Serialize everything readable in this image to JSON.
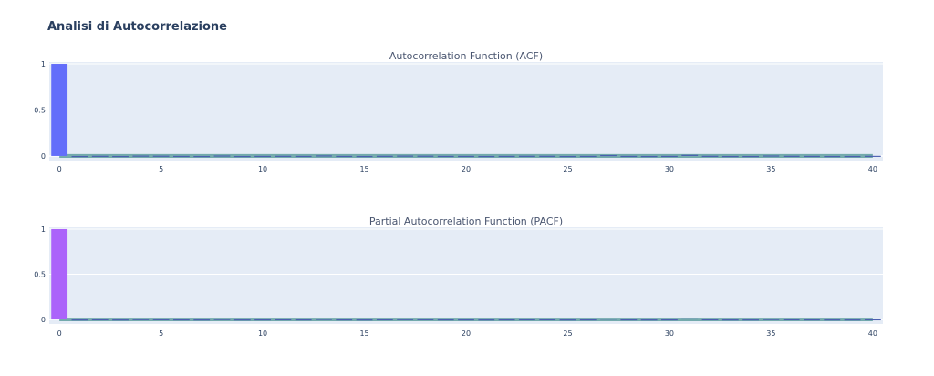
{
  "title": "Analisi di Autocorrelazione",
  "colors": {
    "plot_bg": "#e5ecf6",
    "grid": "#ffffff",
    "tick_text": "#2a3f5f",
    "acf_bar": "#636efa",
    "pacf_bar": "#ab63fa",
    "small_bar": "#4a5fb0",
    "confidence_band": "#5f9f9f"
  },
  "chart_data": [
    {
      "type": "bar",
      "title": "Autocorrelation Function (ACF)",
      "xlim": [
        -0.5,
        40.5
      ],
      "ylim": [
        -0.05,
        1.02
      ],
      "x_ticks": [
        0,
        5,
        10,
        15,
        20,
        25,
        30,
        35,
        40
      ],
      "y_ticks": [
        0,
        0.5,
        1
      ],
      "y_tick_labels": [
        "0",
        "0.5",
        "1"
      ],
      "confidence_band": 0.02,
      "grid": true,
      "lags": [
        0,
        1,
        2,
        3,
        4,
        5,
        6,
        7,
        8,
        9,
        10,
        11,
        12,
        13,
        14,
        15,
        16,
        17,
        18,
        19,
        20,
        21,
        22,
        23,
        24,
        25,
        26,
        27,
        28,
        29,
        30,
        31,
        32,
        33,
        34,
        35,
        36,
        37,
        38,
        39,
        40
      ],
      "values": [
        1.0,
        -0.003,
        0.002,
        -0.008,
        0.004,
        0.003,
        0.001,
        -0.002,
        0.005,
        -0.01,
        0.001,
        0.002,
        0.001,
        0.006,
        0.001,
        -0.002,
        0.002,
        0.004,
        0.003,
        0.001,
        0.001,
        -0.002,
        0.001,
        0.002,
        0.002,
        -0.004,
        0.001,
        0.01,
        0.001,
        -0.002,
        0.001,
        0.012,
        0.002,
        -0.002,
        -0.004,
        0.005,
        0.002,
        0.001,
        -0.006,
        -0.003,
        0.002
      ]
    },
    {
      "type": "bar",
      "title": "Partial Autocorrelation Function (PACF)",
      "xlim": [
        -0.5,
        40.5
      ],
      "ylim": [
        -0.05,
        1.02
      ],
      "x_ticks": [
        0,
        5,
        10,
        15,
        20,
        25,
        30,
        35,
        40
      ],
      "y_ticks": [
        0,
        0.5,
        1
      ],
      "y_tick_labels": [
        "0",
        "0.5",
        "1"
      ],
      "confidence_band": 0.02,
      "grid": true,
      "lags": [
        0,
        1,
        2,
        3,
        4,
        5,
        6,
        7,
        8,
        9,
        10,
        11,
        12,
        13,
        14,
        15,
        16,
        17,
        18,
        19,
        20,
        21,
        22,
        23,
        24,
        25,
        26,
        27,
        28,
        29,
        30,
        31,
        32,
        33,
        34,
        35,
        36,
        37,
        38,
        39,
        40
      ],
      "values": [
        1.0,
        -0.003,
        0.002,
        -0.008,
        0.004,
        0.003,
        0.001,
        -0.002,
        0.005,
        -0.01,
        0.001,
        0.002,
        0.001,
        0.006,
        0.001,
        -0.002,
        0.002,
        0.004,
        0.003,
        0.001,
        0.001,
        -0.002,
        0.001,
        0.002,
        0.002,
        -0.004,
        0.001,
        0.01,
        0.001,
        -0.002,
        0.001,
        0.012,
        0.002,
        -0.002,
        -0.004,
        0.005,
        0.002,
        0.001,
        -0.006,
        -0.003,
        0.002
      ]
    }
  ]
}
